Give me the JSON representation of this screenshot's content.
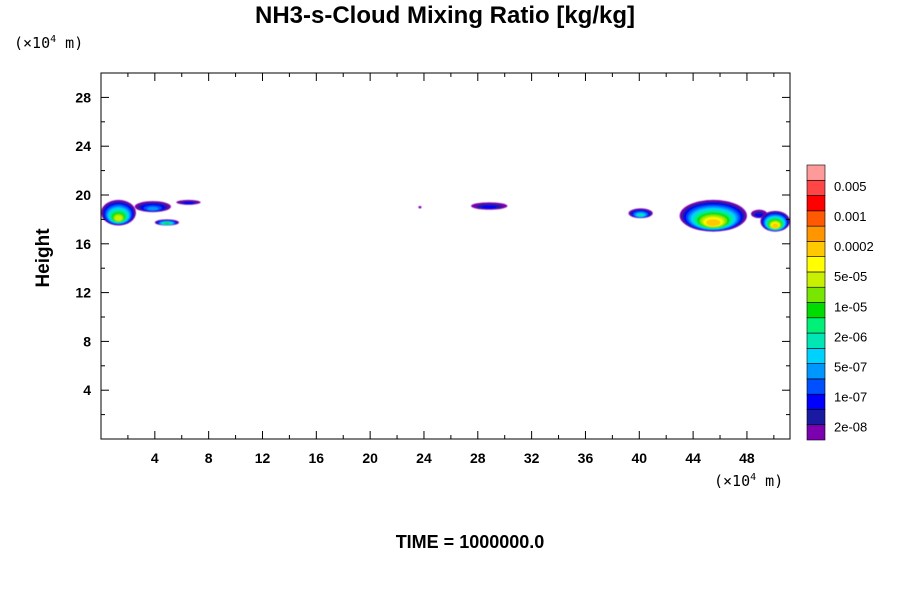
{
  "chart_data": {
    "type": "heatmap",
    "title": "NH3-s-Cloud Mixing Ratio [kg/kg]",
    "ylabel": "Height",
    "xlabel": "",
    "x_unit_label": {
      "prefix": "(×10",
      "exp": "4",
      "suffix": " m)"
    },
    "y_unit_label": {
      "prefix": "(×10",
      "exp": "4",
      "suffix": " m)"
    },
    "xlim": [
      0,
      51.2
    ],
    "ylim": [
      0,
      30
    ],
    "x_ticks": [
      4,
      8,
      12,
      16,
      20,
      24,
      28,
      32,
      36,
      40,
      44,
      48
    ],
    "y_ticks": [
      4,
      8,
      12,
      16,
      20,
      24,
      28
    ],
    "x_minor_step": 2,
    "y_minor_step": 2,
    "footer": "TIME = 1000000.0",
    "colorbar": {
      "labels": [
        "0.005",
        "0.001",
        "0.0002",
        "5e-05",
        "1e-05",
        "2e-06",
        "5e-07",
        "1e-07",
        "2e-08"
      ],
      "colors_bottom_to_top": [
        "#7a00b0",
        "#1a1aa0",
        "#0000ff",
        "#0050ff",
        "#0096ff",
        "#00d2ff",
        "#00e6b4",
        "#00f078",
        "#00dc00",
        "#78e600",
        "#c8f000",
        "#ffff00",
        "#ffc800",
        "#ff9600",
        "#ff5a00",
        "#ff0000",
        "#ff4646",
        "#ff9a9a"
      ]
    },
    "cloud_regions": [
      {
        "x": [
          0.0,
          2.6
        ],
        "y": [
          17.5,
          19.6
        ],
        "peak": "5e-05"
      },
      {
        "x": [
          2.5,
          5.2
        ],
        "y": [
          18.6,
          19.5
        ],
        "peak": "5e-07"
      },
      {
        "x": [
          5.6,
          7.4
        ],
        "y": [
          19.2,
          19.6
        ],
        "peak": "1e-07"
      },
      {
        "x": [
          4.0,
          5.8
        ],
        "y": [
          17.5,
          18.0
        ],
        "peak": "1e-05"
      },
      {
        "x": [
          23.6,
          23.8
        ],
        "y": [
          18.9,
          19.1
        ],
        "peak": "2e-08"
      },
      {
        "x": [
          27.5,
          30.2
        ],
        "y": [
          18.8,
          19.4
        ],
        "peak": "1e-07"
      },
      {
        "x": [
          39.2,
          41.0
        ],
        "y": [
          18.1,
          18.9
        ],
        "peak": "2e-06"
      },
      {
        "x": [
          43.0,
          48.0
        ],
        "y": [
          17.0,
          19.6
        ],
        "peak": "0.0002"
      },
      {
        "x": [
          48.3,
          49.5
        ],
        "y": [
          18.1,
          18.8
        ],
        "peak": "1e-07"
      },
      {
        "x": [
          49.0,
          51.2
        ],
        "y": [
          17.0,
          18.7
        ],
        "peak": "0.0002"
      }
    ]
  }
}
